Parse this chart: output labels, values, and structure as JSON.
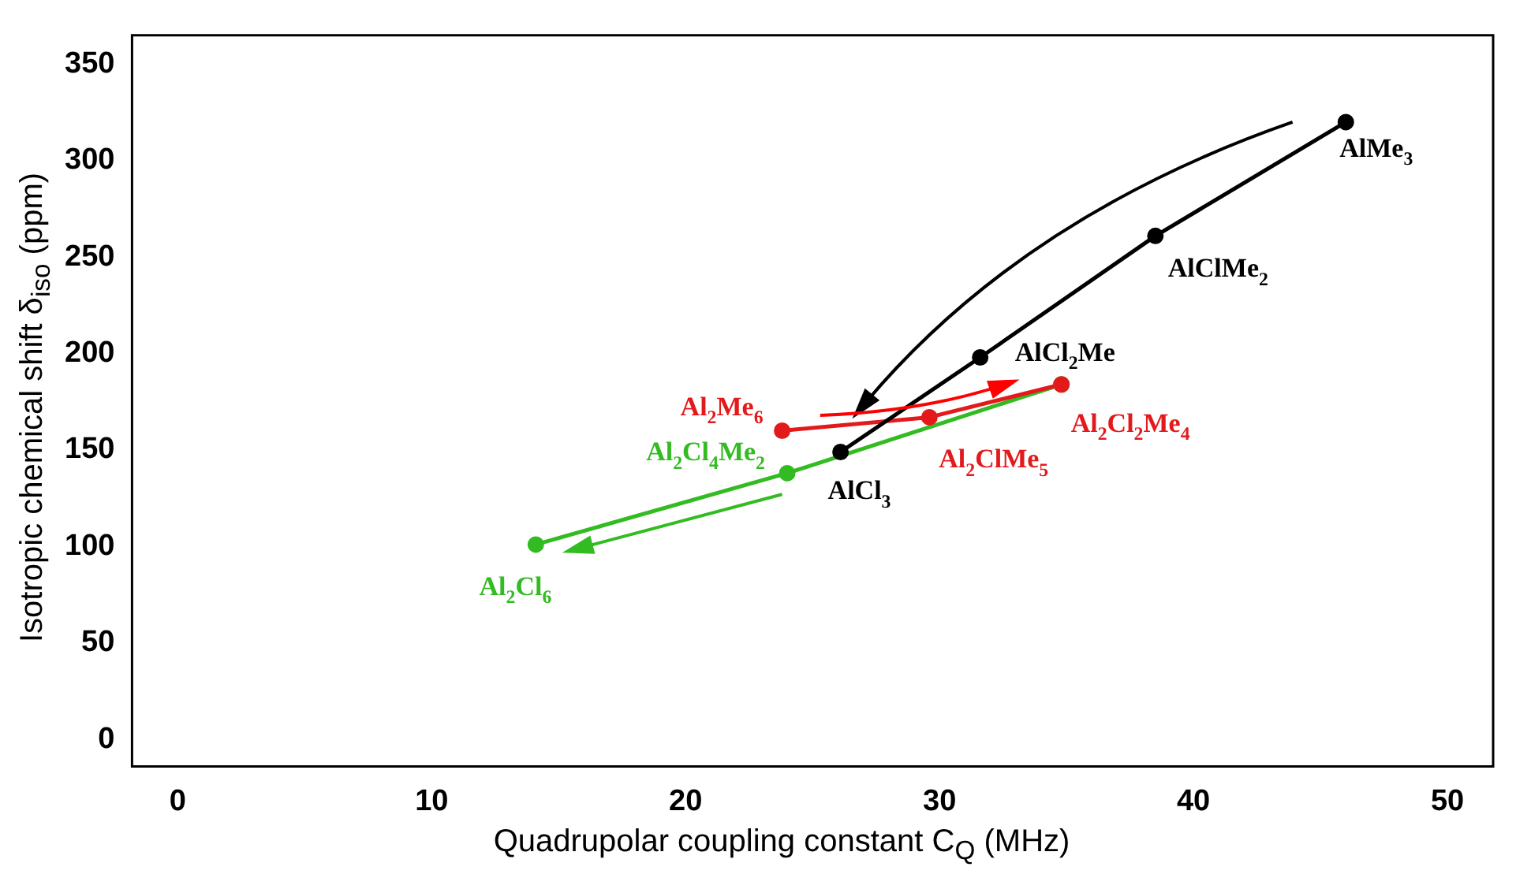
{
  "chart_data": {
    "type": "line",
    "xlabel": "Quadrupolar coupling constant C$_{Q}$ (MHz)",
    "ylabel": "Isotropic chemical shift δ$_{iso}$ (ppm)",
    "series": [
      {
        "color": "#000000",
        "x": [
          26.1,
          31.6,
          38.5,
          46.0
        ],
        "values": [
          149,
          198,
          261,
          320
        ]
      },
      {
        "color": "#e31a1c",
        "x": [
          23.8,
          29.6,
          34.8
        ],
        "values": [
          160,
          167,
          184
        ]
      },
      {
        "color": "#33bb22",
        "x": [
          14.1,
          24.0,
          34.8
        ],
        "values": [
          101,
          138,
          184
        ]
      }
    ],
    "annotations": [
      {
        "text": "AlMe$_{3}$",
        "x": 46.0,
        "y": 320
      },
      {
        "text": "AlClMe$_{2}$",
        "x": 38.5,
        "y": 261
      },
      {
        "text": "AlCl$_{2}$Me",
        "x": 31.6,
        "y": 198
      },
      {
        "text": "AlCl$_{3}$",
        "x": 26.1,
        "y": 149
      },
      {
        "text": "Al$_{2}$Me$_{6}$",
        "x": 23.8,
        "y": 160
      },
      {
        "text": "Al$_{2}$ClMe$_{5}$",
        "x": 29.6,
        "y": 167
      },
      {
        "text": "Al$_{2}$Cl$_{2}$Me$_{4}$",
        "x": 34.8,
        "y": 184
      },
      {
        "text": "Al$_{2}$Cl$_{6}$",
        "x": 14.1,
        "y": 101
      },
      {
        "text": "Al$_{2}$Cl$_{4}$Me$_{2}$",
        "x": 24.0,
        "y": 138
      }
    ],
    "xlim": [
      -1.8,
      51.8
    ],
    "xticks": [
      0,
      10,
      20,
      30,
      40,
      50
    ],
    "ylim": [
      -14,
      365
    ],
    "yticks": [
      0,
      50,
      100,
      150,
      200,
      250,
      300,
      350
    ],
    "grid": false,
    "legend": false,
    "marker": "circle",
    "line_style": "solid"
  }
}
